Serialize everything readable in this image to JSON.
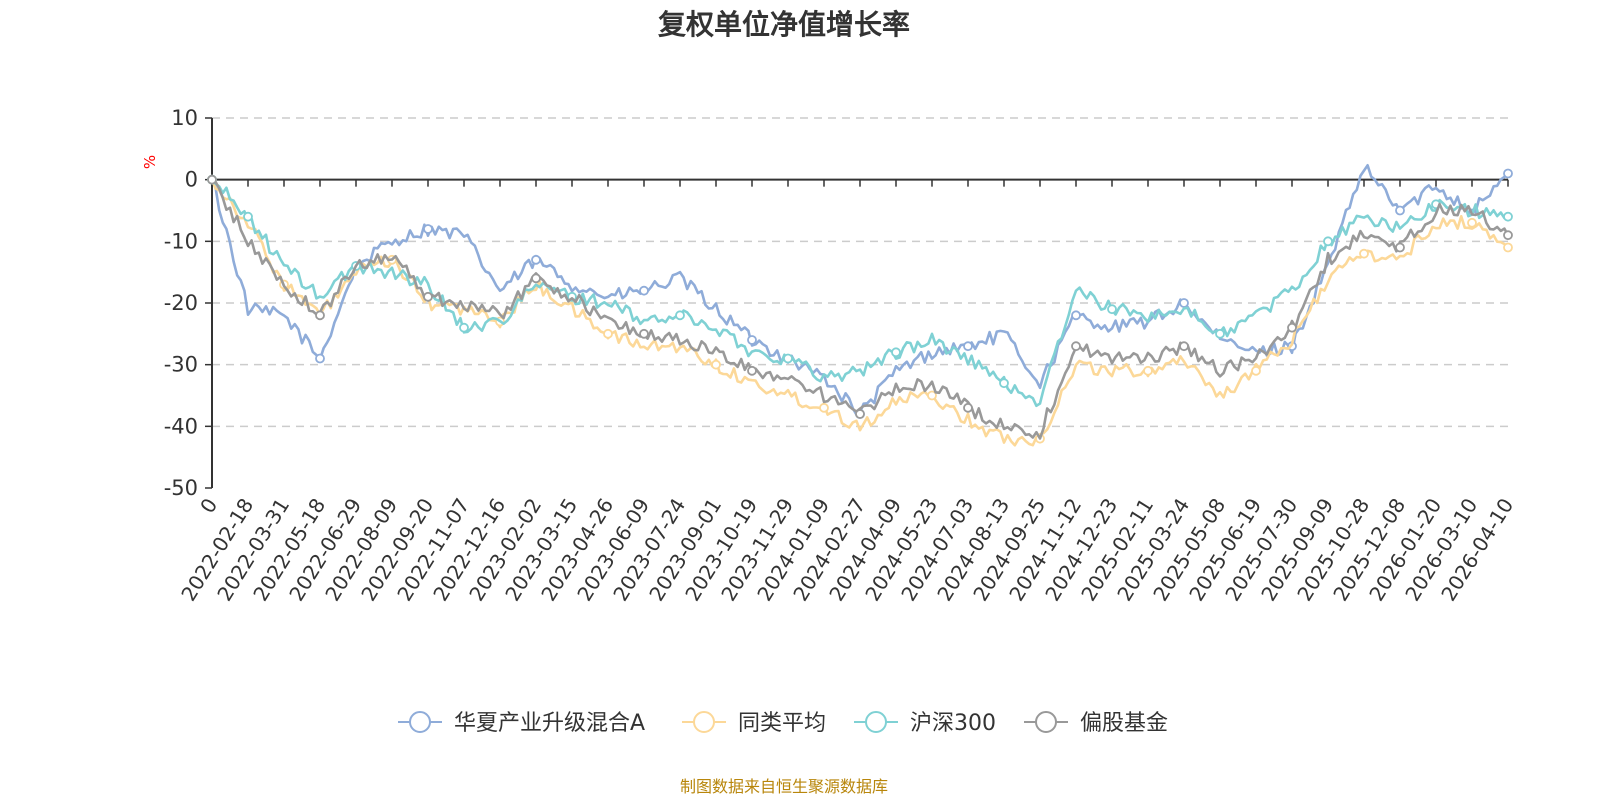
{
  "chart_data": {
    "type": "line",
    "title": "复权单位净值增长率",
    "ylabel": "%",
    "ylim": [
      -50,
      10
    ],
    "yticks": [
      10,
      0,
      -10,
      -20,
      -30,
      -40,
      -50
    ],
    "xlabel": "",
    "categories": [
      "0",
      "2022-02-18",
      "2022-03-31",
      "2022-05-18",
      "2022-06-29",
      "2022-08-09",
      "2022-09-20",
      "2022-11-07",
      "2022-12-16",
      "2023-02-02",
      "2023-03-15",
      "2023-04-26",
      "2023-06-09",
      "2023-07-24",
      "2023-09-01",
      "2023-10-19",
      "2023-11-29",
      "2024-01-09",
      "2024-02-27",
      "2024-04-09",
      "2024-05-23",
      "2024-07-03",
      "2024-08-13",
      "2024-09-25",
      "2024-11-12",
      "2024-12-23",
      "2025-02-11",
      "2025-03-24",
      "2025-05-08",
      "2025-06-19",
      "2025-07-30",
      "2025-09-09",
      "2025-10-28",
      "2025-12-08",
      "2026-01-20",
      "2026-03-10",
      "2026-04-10"
    ],
    "grid": true,
    "legend_position": "bottom",
    "series": [
      {
        "name": "华夏产业升级混合A",
        "color": "#8facd9",
        "values": [
          0,
          -21,
          -22,
          -29,
          -14,
          -10,
          -8,
          -9,
          -18,
          -13,
          -17,
          -19,
          -18,
          -16,
          -21,
          -26,
          -29,
          -32,
          -38,
          -31,
          -28,
          -27,
          -25,
          -33,
          -22,
          -24,
          -23,
          -20,
          -26,
          -28,
          -27,
          -14,
          2,
          -5,
          -1,
          -5,
          1
        ]
      },
      {
        "name": "同类平均",
        "color": "#fcd898",
        "values": [
          0,
          -7,
          -17,
          -22,
          -15,
          -13,
          -20,
          -21,
          -23,
          -17,
          -21,
          -25,
          -27,
          -27,
          -30,
          -33,
          -35,
          -37,
          -40,
          -36,
          -35,
          -39,
          -42,
          -42,
          -30,
          -31,
          -31,
          -29,
          -35,
          -31,
          -26,
          -16,
          -12,
          -13,
          -7,
          -7,
          -11
        ]
      },
      {
        "name": "沪深300",
        "color": "#7fd1d4",
        "values": [
          0,
          -6,
          -14,
          -19,
          -14,
          -15,
          -17,
          -24,
          -23,
          -17,
          -19,
          -20,
          -23,
          -22,
          -24,
          -28,
          -29,
          -32,
          -31,
          -28,
          -26,
          -29,
          -33,
          -36,
          -18,
          -21,
          -22,
          -21,
          -25,
          -22,
          -18,
          -10,
          -6,
          -8,
          -4,
          -5,
          -6
        ]
      },
      {
        "name": "偏股基金",
        "color": "#999999",
        "values": [
          0,
          -10,
          -17,
          -22,
          -14,
          -12,
          -19,
          -20,
          -22,
          -16,
          -19,
          -23,
          -25,
          -26,
          -28,
          -31,
          -32,
          -35,
          -38,
          -34,
          -33,
          -37,
          -40,
          -41,
          -27,
          -29,
          -29,
          -27,
          -31,
          -29,
          -24,
          -13,
          -9,
          -11,
          -5,
          -5,
          -9
        ]
      }
    ]
  },
  "footer": {
    "source": "制图数据来自恒生聚源数据库"
  },
  "colors": {
    "axis": "#333333",
    "grid": "#cccccc",
    "unit": "#ff0000",
    "source": "#b8860b"
  }
}
